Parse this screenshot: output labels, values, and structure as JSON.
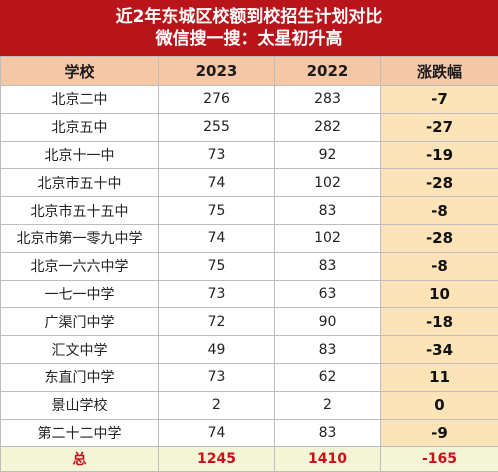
{
  "title": {
    "line1": "近2年东城区校额到校招生计划对比",
    "line2": "微信搜一搜：太星初升高"
  },
  "headers": {
    "school": "学校",
    "y2023": "2023",
    "y2022": "2022",
    "change": "涨跌幅"
  },
  "rows": [
    {
      "school": "北京二中",
      "y2023": "276",
      "y2022": "283",
      "change": "-7"
    },
    {
      "school": "北京五中",
      "y2023": "255",
      "y2022": "282",
      "change": "-27"
    },
    {
      "school": "北京十一中",
      "y2023": "73",
      "y2022": "92",
      "change": "-19"
    },
    {
      "school": "北京市五十中",
      "y2023": "74",
      "y2022": "102",
      "change": "-28"
    },
    {
      "school": "北京市五十五中",
      "y2023": "75",
      "y2022": "83",
      "change": "-8"
    },
    {
      "school": "北京市第一零九中学",
      "y2023": "74",
      "y2022": "102",
      "change": "-28"
    },
    {
      "school": "北京一六六中学",
      "y2023": "75",
      "y2022": "83",
      "change": "-8"
    },
    {
      "school": "一七一中学",
      "y2023": "73",
      "y2022": "63",
      "change": "10"
    },
    {
      "school": "广渠门中学",
      "y2023": "72",
      "y2022": "90",
      "change": "-18"
    },
    {
      "school": "汇文中学",
      "y2023": "49",
      "y2022": "83",
      "change": "-34"
    },
    {
      "school": "东直门中学",
      "y2023": "73",
      "y2022": "62",
      "change": "11"
    },
    {
      "school": "景山学校",
      "y2023": "2",
      "y2022": "2",
      "change": "0"
    },
    {
      "school": "第二十二中学",
      "y2023": "74",
      "y2022": "83",
      "change": "-9"
    }
  ],
  "total": {
    "label": "总",
    "y2023": "1245",
    "y2022": "1410",
    "change": "-165"
  },
  "colors": {
    "title_bg": "#b9141a",
    "header_bg": "#f6c7a7",
    "change_col_bg": "#fde4b8",
    "total_text": "#c8101a"
  }
}
